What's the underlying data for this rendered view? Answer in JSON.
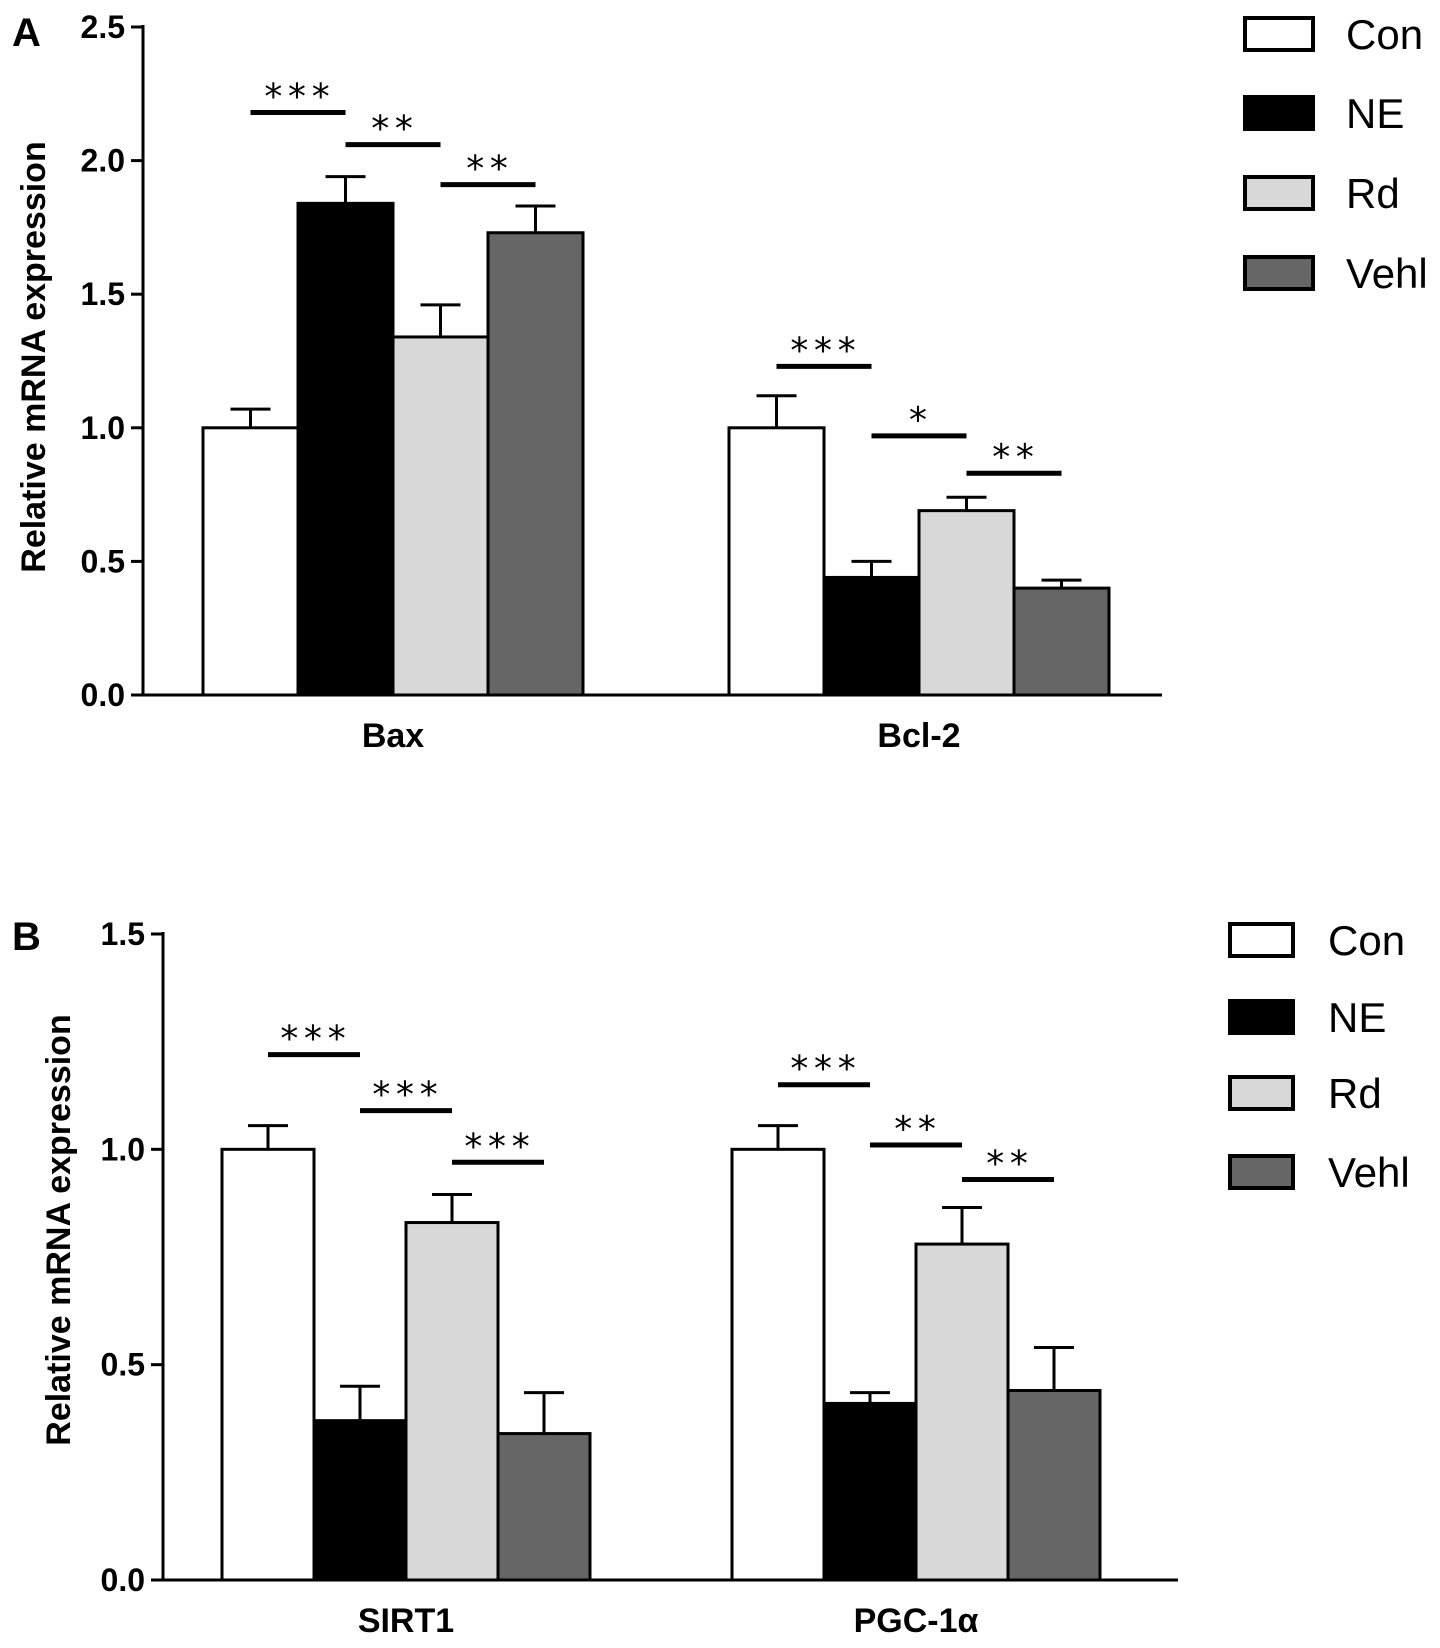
{
  "colors": {
    "Con": "#ffffff",
    "NE": "#000000",
    "Rd": "#d8d8d8",
    "Vehl": "#666666",
    "stroke": "#000000"
  },
  "chart_data": [
    {
      "type": "bar",
      "panel": "A",
      "ylabel": "Relative mRNA expression",
      "ylim": [
        0,
        2.5
      ],
      "yticks": [
        "0.0",
        "0.5",
        "1.0",
        "1.5",
        "2.0",
        "2.5"
      ],
      "ytick_values": [
        0,
        0.5,
        1.0,
        1.5,
        2.0,
        2.5
      ],
      "categories": [
        "Bax",
        "Bcl-2"
      ],
      "legend": [
        "Con",
        "NE",
        "Rd",
        "Vehl"
      ],
      "series": [
        {
          "name": "Con",
          "values": [
            1.0,
            1.0
          ],
          "errors": [
            0.07,
            0.12
          ]
        },
        {
          "name": "NE",
          "values": [
            1.84,
            0.44
          ],
          "errors": [
            0.1,
            0.06
          ]
        },
        {
          "name": "Rd",
          "values": [
            1.34,
            0.69
          ],
          "errors": [
            0.12,
            0.05
          ]
        },
        {
          "name": "Vehl",
          "values": [
            1.73,
            0.4
          ],
          "errors": [
            0.1,
            0.03
          ]
        }
      ],
      "significance": [
        {
          "category": 0,
          "from": 0,
          "to": 1,
          "label": "***",
          "level": 2.18
        },
        {
          "category": 0,
          "from": 1,
          "to": 2,
          "label": "**",
          "level": 2.06
        },
        {
          "category": 0,
          "from": 2,
          "to": 3,
          "label": "**",
          "level": 1.91
        },
        {
          "category": 1,
          "from": 0,
          "to": 1,
          "label": "***",
          "level": 1.23
        },
        {
          "category": 1,
          "from": 1,
          "to": 2,
          "label": "*",
          "level": 0.97
        },
        {
          "category": 1,
          "from": 2,
          "to": 3,
          "label": "**",
          "level": 0.83
        }
      ]
    },
    {
      "type": "bar",
      "panel": "B",
      "ylabel": "Relative mRNA expression",
      "ylim": [
        0,
        1.5
      ],
      "yticks": [
        "0.0",
        "0.5",
        "1.0",
        "1.5"
      ],
      "ytick_values": [
        0,
        0.5,
        1.0,
        1.5
      ],
      "categories": [
        "SIRT1",
        "PGC-1α"
      ],
      "legend": [
        "Con",
        "NE",
        "Rd",
        "Vehl"
      ],
      "series": [
        {
          "name": "Con",
          "values": [
            1.0,
            1.0
          ],
          "errors": [
            0.055,
            0.055
          ]
        },
        {
          "name": "NE",
          "values": [
            0.37,
            0.41
          ],
          "errors": [
            0.08,
            0.025
          ]
        },
        {
          "name": "Rd",
          "values": [
            0.83,
            0.78
          ],
          "errors": [
            0.065,
            0.085
          ]
        },
        {
          "name": "Vehl",
          "values": [
            0.34,
            0.44
          ],
          "errors": [
            0.095,
            0.1
          ]
        }
      ],
      "significance": [
        {
          "category": 0,
          "from": 0,
          "to": 1,
          "label": "***",
          "level": 1.22
        },
        {
          "category": 0,
          "from": 1,
          "to": 2,
          "label": "***",
          "level": 1.09
        },
        {
          "category": 0,
          "from": 2,
          "to": 3,
          "label": "***",
          "level": 0.97
        },
        {
          "category": 1,
          "from": 0,
          "to": 1,
          "label": "***",
          "level": 1.15
        },
        {
          "category": 1,
          "from": 1,
          "to": 2,
          "label": "**",
          "level": 1.01
        },
        {
          "category": 1,
          "from": 2,
          "to": 3,
          "label": "**",
          "level": 0.93
        }
      ]
    }
  ]
}
